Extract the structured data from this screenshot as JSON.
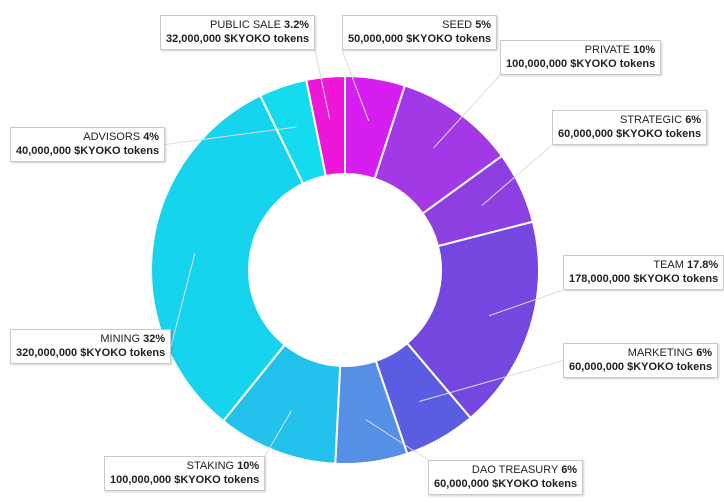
{
  "chart_data": {
    "type": "pie",
    "donut": true,
    "title": "",
    "legend": "none",
    "token_unit": "$KYOKO tokens",
    "slices": [
      {
        "name": "SEED",
        "percent": 5,
        "pct_label": "5%",
        "tokens": "50,000,000",
        "color": "#d61ef0"
      },
      {
        "name": "PRIVATE",
        "percent": 10,
        "pct_label": "10%",
        "tokens": "100,000,000",
        "color": "#a338e6"
      },
      {
        "name": "STRATEGIC",
        "percent": 6,
        "pct_label": "6%",
        "tokens": "60,000,000",
        "color": "#8e3fe2"
      },
      {
        "name": "TEAM",
        "percent": 17.8,
        "pct_label": "17.8%",
        "tokens": "178,000,000",
        "color": "#7448e0"
      },
      {
        "name": "MARKETING",
        "percent": 6,
        "pct_label": "6%",
        "tokens": "60,000,000",
        "color": "#5a5de2"
      },
      {
        "name": "DAO TREASURY",
        "percent": 6,
        "pct_label": "6%",
        "tokens": "60,000,000",
        "color": "#5690e6"
      },
      {
        "name": "STAKING",
        "percent": 10,
        "pct_label": "10%",
        "tokens": "100,000,000",
        "color": "#23c2ec"
      },
      {
        "name": "MINING",
        "percent": 32,
        "pct_label": "32%",
        "tokens": "320,000,000",
        "color": "#17d4ee"
      },
      {
        "name": "ADVISORS",
        "percent": 4,
        "pct_label": "4%",
        "tokens": "40,000,000",
        "color": "#14dcee"
      },
      {
        "name": "PUBLIC SALE",
        "percent": 3.2,
        "pct_label": "3.2%",
        "tokens": "32,000,000",
        "color": "#ee16d8"
      }
    ]
  }
}
